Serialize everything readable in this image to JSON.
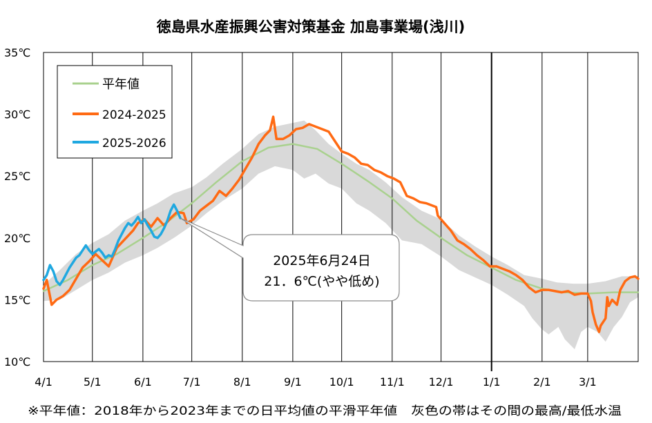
{
  "chart_data": {
    "type": "line",
    "title": "徳島県水産振興公害対策基金 加島事業場(浅川)",
    "footnote": "※平年値：2018年から2023年までの日平均値の平滑平年値　灰色の帯はその間の最高/最低水温",
    "ylim": [
      10,
      35
    ],
    "y_ticks": [
      10,
      15,
      20,
      25,
      30,
      35
    ],
    "y_tick_labels": [
      "10℃",
      "15℃",
      "20℃",
      "25℃",
      "30℃",
      "35℃"
    ],
    "x_range_days": [
      0,
      365
    ],
    "x_ticks": [
      {
        "label": "4/1",
        "day": 0
      },
      {
        "label": "5/1",
        "day": 30
      },
      {
        "label": "6/1",
        "day": 61
      },
      {
        "label": "7/1",
        "day": 91
      },
      {
        "label": "8/1",
        "day": 122
      },
      {
        "label": "9/1",
        "day": 153
      },
      {
        "label": "10/1",
        "day": 183
      },
      {
        "label": "11/1",
        "day": 214
      },
      {
        "label": "12/1",
        "day": 244
      },
      {
        "label": "1/1",
        "day": 275
      },
      {
        "label": "2/1",
        "day": 306
      },
      {
        "label": "3/1",
        "day": 334
      }
    ],
    "year_boundary_day": 275,
    "grid": "vertical",
    "legend_position": "top-left",
    "colors": {
      "normal": "#a9d18e",
      "s2024": "#ff6a13",
      "s2025": "#1fa8e0",
      "band": "#d9d9d9"
    },
    "series": [
      {
        "name": "平年値",
        "color": "#a9d18e",
        "points": [
          [
            0,
            15.7
          ],
          [
            15,
            16.6
          ],
          [
            30,
            17.8
          ],
          [
            45,
            18.7
          ],
          [
            61,
            20.0
          ],
          [
            76,
            21.3
          ],
          [
            91,
            22.8
          ],
          [
            106,
            24.5
          ],
          [
            122,
            26.2
          ],
          [
            138,
            27.3
          ],
          [
            153,
            27.6
          ],
          [
            168,
            27.2
          ],
          [
            183,
            26.0
          ],
          [
            199,
            24.6
          ],
          [
            214,
            23.2
          ],
          [
            229,
            21.4
          ],
          [
            244,
            20.0
          ],
          [
            260,
            18.6
          ],
          [
            275,
            17.6
          ],
          [
            290,
            16.6
          ],
          [
            306,
            15.9
          ],
          [
            320,
            15.6
          ],
          [
            334,
            15.5
          ],
          [
            350,
            15.6
          ],
          [
            365,
            15.6
          ]
        ]
      },
      {
        "name": "2024-2025",
        "color": "#ff6a13",
        "points": [
          [
            0,
            15.9
          ],
          [
            2,
            16.6
          ],
          [
            5,
            14.6
          ],
          [
            8,
            15.0
          ],
          [
            12,
            15.3
          ],
          [
            16,
            15.8
          ],
          [
            20,
            16.7
          ],
          [
            24,
            17.6
          ],
          [
            28,
            18.1
          ],
          [
            32,
            18.7
          ],
          [
            36,
            18.2
          ],
          [
            40,
            17.7
          ],
          [
            45,
            19.2
          ],
          [
            50,
            19.9
          ],
          [
            55,
            20.6
          ],
          [
            58,
            21.2
          ],
          [
            62,
            21.5
          ],
          [
            66,
            20.9
          ],
          [
            70,
            21.6
          ],
          [
            74,
            21.0
          ],
          [
            78,
            21.6
          ],
          [
            82,
            22.1
          ],
          [
            86,
            22.0
          ],
          [
            88,
            21.2
          ],
          [
            92,
            21.5
          ],
          [
            96,
            22.2
          ],
          [
            100,
            22.6
          ],
          [
            104,
            23.0
          ],
          [
            108,
            23.8
          ],
          [
            112,
            23.4
          ],
          [
            116,
            24.0
          ],
          [
            120,
            24.7
          ],
          [
            124,
            25.6
          ],
          [
            128,
            26.5
          ],
          [
            132,
            27.6
          ],
          [
            136,
            28.3
          ],
          [
            139,
            28.7
          ],
          [
            141,
            29.8
          ],
          [
            143,
            28.0
          ],
          [
            147,
            28.0
          ],
          [
            151,
            28.3
          ],
          [
            155,
            28.8
          ],
          [
            159,
            28.9
          ],
          [
            163,
            29.2
          ],
          [
            167,
            29.0
          ],
          [
            171,
            28.8
          ],
          [
            175,
            28.6
          ],
          [
            179,
            27.8
          ],
          [
            183,
            27.0
          ],
          [
            187,
            26.8
          ],
          [
            191,
            26.5
          ],
          [
            195,
            26.0
          ],
          [
            199,
            25.9
          ],
          [
            203,
            25.5
          ],
          [
            207,
            25.3
          ],
          [
            211,
            25.0
          ],
          [
            215,
            24.8
          ],
          [
            219,
            24.5
          ],
          [
            223,
            23.4
          ],
          [
            227,
            23.2
          ],
          [
            231,
            22.9
          ],
          [
            235,
            22.8
          ],
          [
            239,
            22.6
          ],
          [
            241,
            22.5
          ],
          [
            242,
            21.8
          ],
          [
            246,
            21.2
          ],
          [
            250,
            20.6
          ],
          [
            254,
            19.8
          ],
          [
            258,
            19.5
          ],
          [
            262,
            19.1
          ],
          [
            266,
            18.6
          ],
          [
            270,
            18.2
          ],
          [
            274,
            17.7
          ],
          [
            278,
            17.7
          ],
          [
            282,
            17.5
          ],
          [
            286,
            17.3
          ],
          [
            290,
            17.0
          ],
          [
            294,
            16.6
          ],
          [
            298,
            16.0
          ],
          [
            302,
            15.6
          ],
          [
            306,
            15.8
          ],
          [
            310,
            15.8
          ],
          [
            314,
            15.7
          ],
          [
            318,
            15.6
          ],
          [
            322,
            15.7
          ],
          [
            326,
            15.4
          ],
          [
            330,
            15.5
          ],
          [
            334,
            15.5
          ],
          [
            336,
            14.9
          ],
          [
            337,
            14.0
          ],
          [
            339,
            13.0
          ],
          [
            341,
            12.4
          ],
          [
            342,
            12.9
          ],
          [
            345,
            13.5
          ],
          [
            346,
            15.2
          ],
          [
            347,
            14.5
          ],
          [
            349,
            15.0
          ],
          [
            352,
            14.6
          ],
          [
            354,
            15.8
          ],
          [
            357,
            16.5
          ],
          [
            360,
            16.8
          ],
          [
            363,
            16.9
          ],
          [
            365,
            16.7
          ]
        ]
      },
      {
        "name": "2025-2026",
        "color": "#1fa8e0",
        "points": [
          [
            0,
            16.6
          ],
          [
            2,
            17.0
          ],
          [
            4,
            17.8
          ],
          [
            6,
            17.3
          ],
          [
            8,
            16.5
          ],
          [
            10,
            16.2
          ],
          [
            12,
            16.6
          ],
          [
            14,
            17.1
          ],
          [
            16,
            17.6
          ],
          [
            18,
            18.0
          ],
          [
            20,
            18.4
          ],
          [
            22,
            18.6
          ],
          [
            24,
            19.0
          ],
          [
            26,
            19.4
          ],
          [
            28,
            19.0
          ],
          [
            30,
            18.7
          ],
          [
            32,
            18.9
          ],
          [
            34,
            19.1
          ],
          [
            36,
            18.8
          ],
          [
            38,
            18.4
          ],
          [
            40,
            18.6
          ],
          [
            42,
            18.5
          ],
          [
            44,
            19.1
          ],
          [
            46,
            19.8
          ],
          [
            48,
            20.3
          ],
          [
            50,
            20.8
          ],
          [
            52,
            21.2
          ],
          [
            54,
            21.0
          ],
          [
            56,
            21.3
          ],
          [
            58,
            21.7
          ],
          [
            60,
            21.2
          ],
          [
            62,
            21.5
          ],
          [
            64,
            21.0
          ],
          [
            66,
            20.6
          ],
          [
            68,
            20.1
          ],
          [
            70,
            20.0
          ],
          [
            72,
            20.3
          ],
          [
            74,
            20.8
          ],
          [
            76,
            21.4
          ],
          [
            78,
            22.2
          ],
          [
            80,
            22.7
          ],
          [
            82,
            22.2
          ],
          [
            84,
            21.6
          ]
        ]
      }
    ],
    "band": {
      "name": "最高/最低水温",
      "upper": [
        [
          0,
          16.2
        ],
        [
          10,
          17.4
        ],
        [
          20,
          18.7
        ],
        [
          30,
          19.6
        ],
        [
          40,
          20.3
        ],
        [
          50,
          21.4
        ],
        [
          61,
          22.2
        ],
        [
          70,
          22.8
        ],
        [
          80,
          23.6
        ],
        [
          91,
          24.1
        ],
        [
          100,
          24.9
        ],
        [
          110,
          26.0
        ],
        [
          122,
          27.2
        ],
        [
          132,
          28.4
        ],
        [
          142,
          29.0
        ],
        [
          153,
          29.3
        ],
        [
          160,
          29.5
        ],
        [
          167,
          28.7
        ],
        [
          175,
          27.6
        ],
        [
          183,
          26.8
        ],
        [
          192,
          26.0
        ],
        [
          200,
          25.5
        ],
        [
          210,
          24.5
        ],
        [
          220,
          23.3
        ],
        [
          232,
          22.2
        ],
        [
          244,
          21.5
        ],
        [
          255,
          20.2
        ],
        [
          265,
          19.3
        ],
        [
          275,
          18.5
        ],
        [
          285,
          17.8
        ],
        [
          295,
          17.0
        ],
        [
          306,
          16.7
        ],
        [
          315,
          16.4
        ],
        [
          325,
          16.3
        ],
        [
          334,
          16.3
        ],
        [
          345,
          16.5
        ],
        [
          355,
          16.9
        ],
        [
          365,
          16.9
        ]
      ],
      "lower": [
        [
          0,
          14.9
        ],
        [
          10,
          15.0
        ],
        [
          20,
          15.8
        ],
        [
          30,
          16.6
        ],
        [
          40,
          17.2
        ],
        [
          50,
          18.0
        ],
        [
          61,
          18.6
        ],
        [
          70,
          19.2
        ],
        [
          80,
          20.0
        ],
        [
          91,
          21.0
        ],
        [
          100,
          22.0
        ],
        [
          110,
          23.0
        ],
        [
          122,
          24.0
        ],
        [
          132,
          25.2
        ],
        [
          142,
          25.8
        ],
        [
          153,
          25.5
        ],
        [
          160,
          24.8
        ],
        [
          167,
          25.2
        ],
        [
          175,
          24.4
        ],
        [
          183,
          24.0
        ],
        [
          192,
          22.8
        ],
        [
          200,
          22.2
        ],
        [
          210,
          21.2
        ],
        [
          220,
          19.8
        ],
        [
          232,
          19.5
        ],
        [
          244,
          18.5
        ],
        [
          255,
          17.4
        ],
        [
          265,
          16.8
        ],
        [
          275,
          16.2
        ],
        [
          285,
          15.4
        ],
        [
          295,
          14.5
        ],
        [
          300,
          13.5
        ],
        [
          306,
          12.6
        ],
        [
          310,
          12.2
        ],
        [
          316,
          12.8
        ],
        [
          320,
          11.8
        ],
        [
          326,
          11.0
        ],
        [
          330,
          12.4
        ],
        [
          334,
          12.8
        ],
        [
          340,
          12.4
        ],
        [
          345,
          11.6
        ],
        [
          350,
          12.8
        ],
        [
          355,
          13.6
        ],
        [
          360,
          14.8
        ],
        [
          365,
          15.2
        ]
      ]
    },
    "annotation": {
      "line1": "2025年6月24日",
      "line2": "21．6℃(やや低め)",
      "point_day": 84,
      "point_value": 21.6
    }
  }
}
